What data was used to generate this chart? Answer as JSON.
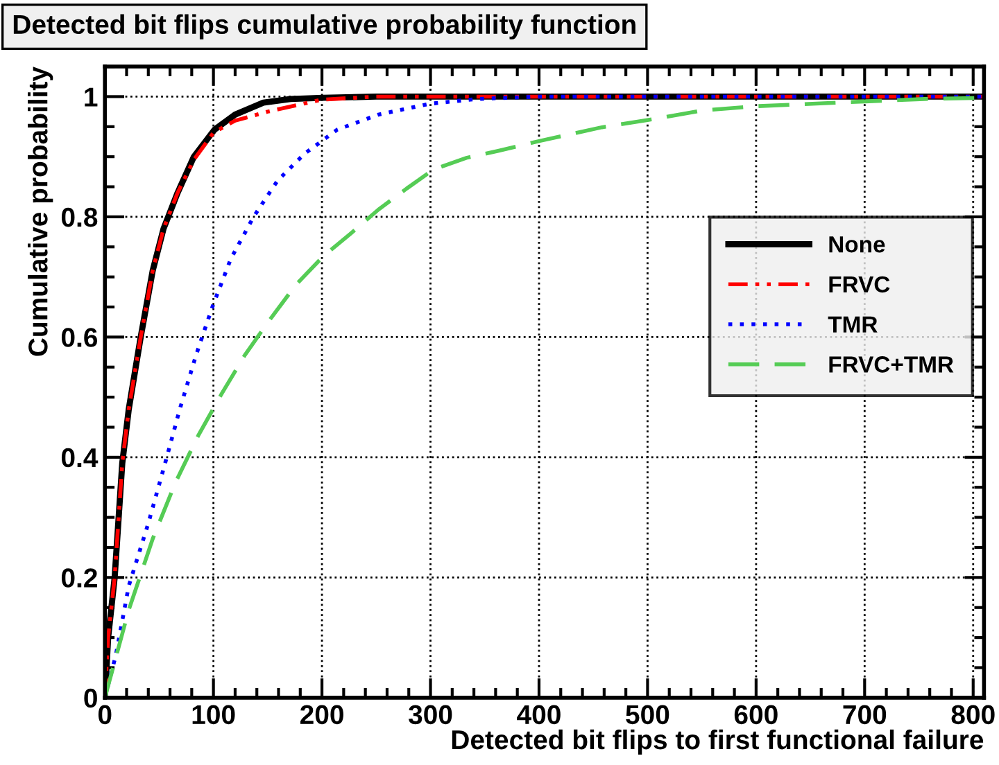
{
  "chart_data": {
    "type": "line",
    "title": "Detected bit flips cumulative probability function",
    "xlabel": "Detected bit flips to first functional failure",
    "ylabel": "Cumulative probability",
    "xlim": [
      0,
      810
    ],
    "ylim": [
      0,
      1.05
    ],
    "xticks": [
      0,
      100,
      200,
      300,
      400,
      500,
      600,
      700,
      800
    ],
    "yticks": [
      0,
      0.2,
      0.4,
      0.6,
      0.8,
      1
    ],
    "grid": true,
    "legend": "right",
    "series": [
      {
        "name": "None",
        "color": "#000000",
        "line_style": "solid",
        "x": [
          0,
          3,
          9,
          16,
          22,
          33,
          44,
          54,
          67,
          82,
          101,
          120,
          146,
          171,
          201,
          250,
          810
        ],
        "values": [
          0,
          0.1,
          0.2,
          0.39,
          0.48,
          0.6,
          0.71,
          0.78,
          0.84,
          0.9,
          0.945,
          0.97,
          0.99,
          0.996,
          0.998,
          1,
          1
        ]
      },
      {
        "name": "FRVC",
        "color": "#ff0000",
        "line_style": "dashdot",
        "x": [
          0,
          3,
          9,
          16,
          22,
          33,
          44,
          54,
          67,
          82,
          100,
          120,
          150,
          200,
          250,
          810
        ],
        "values": [
          0,
          0.1,
          0.2,
          0.39,
          0.48,
          0.6,
          0.71,
          0.78,
          0.84,
          0.895,
          0.94,
          0.96,
          0.975,
          0.995,
          1,
          1
        ]
      },
      {
        "name": "TMR",
        "color": "#0000ff",
        "line_style": "dotted",
        "x": [
          0,
          10,
          22,
          40,
          57,
          69,
          84,
          99,
          116,
          137,
          159,
          184,
          214,
          252,
          299,
          342,
          400,
          810
        ],
        "values": [
          0,
          0.07,
          0.186,
          0.29,
          0.4,
          0.48,
          0.57,
          0.65,
          0.73,
          0.8,
          0.86,
          0.905,
          0.945,
          0.97,
          0.988,
          0.996,
          1,
          1
        ]
      },
      {
        "name": "FRVC+TMR",
        "color": "#55cc55",
        "line_style": "dashed",
        "x": [
          0,
          22,
          44,
          65,
          86,
          108,
          129,
          150,
          176,
          201,
          227,
          252,
          278,
          303,
          333,
          363,
          400,
          458,
          500,
          551,
          600,
          700,
          755,
          810
        ],
        "values": [
          0,
          0.146,
          0.264,
          0.358,
          0.436,
          0.507,
          0.57,
          0.624,
          0.687,
          0.734,
          0.773,
          0.812,
          0.847,
          0.879,
          0.898,
          0.91,
          0.926,
          0.949,
          0.961,
          0.977,
          0.984,
          0.992,
          0.996,
          0.998
        ]
      }
    ]
  }
}
